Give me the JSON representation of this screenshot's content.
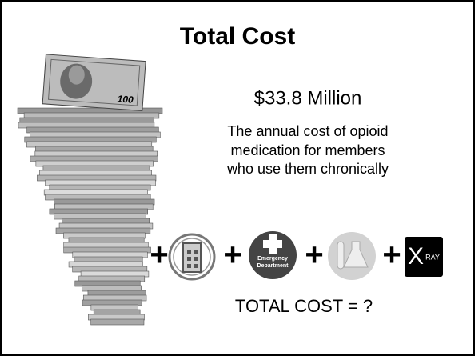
{
  "header": {
    "title": "Total Cost"
  },
  "amount": "$33.8 Million",
  "description": [
    "The annual cost of opioid",
    "medication for members",
    "who use them chronically"
  ],
  "operators": [
    "+",
    "+",
    "+",
    "+"
  ],
  "icons": {
    "emergency": [
      "Emergency",
      "Department"
    ],
    "xray": [
      "X",
      "RAY"
    ]
  },
  "bill_value": "100",
  "total": "TOTAL COST = ?"
}
